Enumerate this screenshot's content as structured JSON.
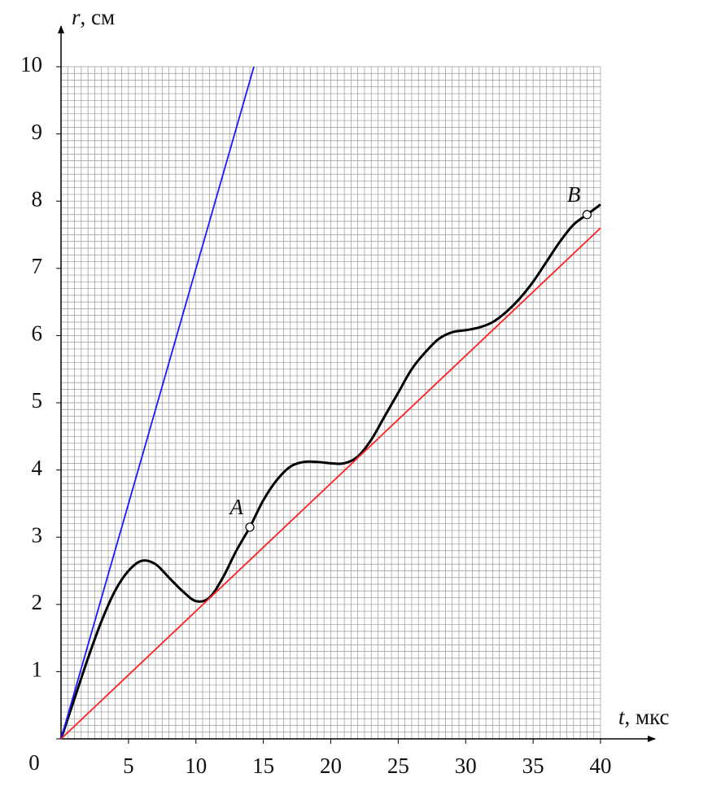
{
  "chart_data": {
    "type": "line",
    "x_label": {
      "var": "t",
      "unit": ", мкс"
    },
    "y_label": {
      "var": "r",
      "unit": ", см"
    },
    "xlim": [
      0,
      40
    ],
    "ylim": [
      0,
      10
    ],
    "xticks": [
      5,
      10,
      15,
      20,
      25,
      30,
      35,
      40
    ],
    "yticks": [
      0,
      1,
      2,
      3,
      4,
      5,
      6,
      7,
      8,
      9,
      10
    ],
    "grid": true,
    "series": [
      {
        "color": "#000000",
        "x": [
          0,
          1,
          2,
          3,
          4,
          5,
          6,
          7,
          8,
          9,
          10,
          11,
          12,
          13,
          14,
          15,
          16,
          17,
          18,
          19,
          20,
          21,
          22,
          23,
          24,
          25,
          26,
          27,
          28,
          29,
          30,
          31,
          32,
          33,
          34,
          35,
          36,
          37,
          38,
          39,
          40
        ],
        "values": [
          0,
          0.6,
          1.2,
          1.75,
          2.2,
          2.5,
          2.65,
          2.6,
          2.4,
          2.2,
          2.05,
          2.1,
          2.4,
          2.8,
          3.15,
          3.55,
          3.85,
          4.05,
          4.12,
          4.12,
          4.1,
          4.1,
          4.2,
          4.45,
          4.8,
          5.15,
          5.5,
          5.75,
          5.95,
          6.05,
          6.08,
          6.12,
          6.2,
          6.35,
          6.55,
          6.8,
          7.1,
          7.4,
          7.65,
          7.8,
          7.95
        ]
      },
      {
        "color": "#1a1aff",
        "x": [
          0,
          14.3
        ],
        "values": [
          0,
          10
        ]
      },
      {
        "color": "#ff2020",
        "x": [
          0,
          40
        ],
        "values": [
          0,
          7.6
        ]
      }
    ],
    "points": [
      {
        "label": "A",
        "x": 14,
        "y": 3.15
      },
      {
        "label": "B",
        "x": 39,
        "y": 7.8
      }
    ]
  }
}
